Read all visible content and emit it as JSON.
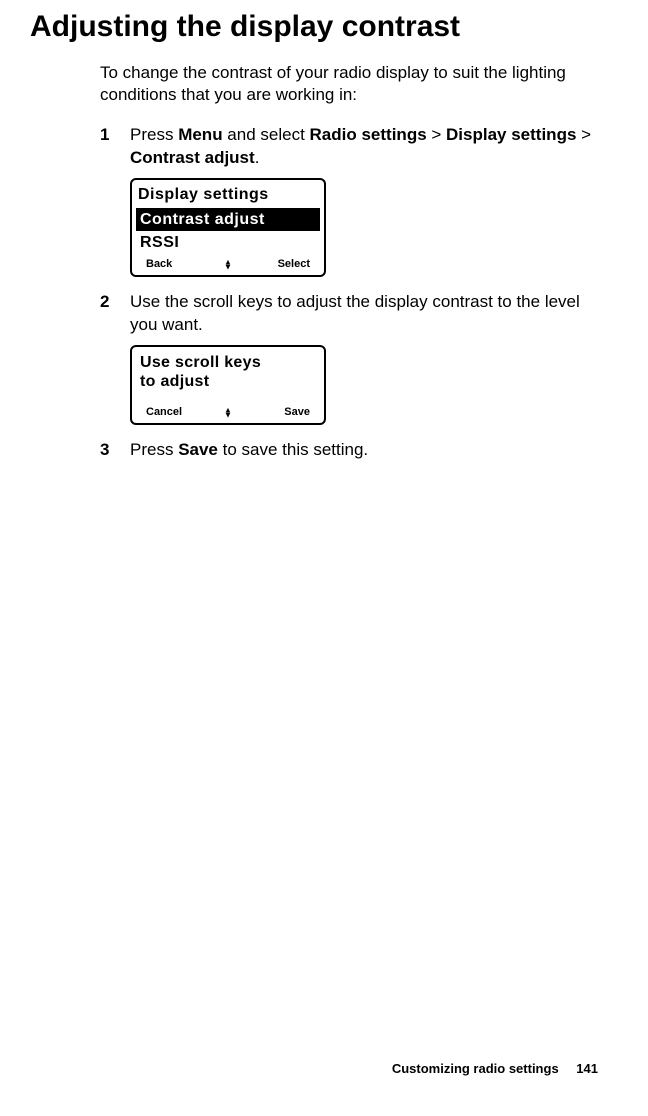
{
  "title": "Adjusting the display contrast",
  "intro": "To change the contrast of your radio display to suit the lighting conditions that you are working in:",
  "steps": {
    "s1_a": "Press ",
    "s1_b": "Menu",
    "s1_c": " and select ",
    "s1_d": "Radio settings",
    "s1_e": " > ",
    "s1_f": "Display settings",
    "s1_g": " > ",
    "s1_h": "Contrast adjust",
    "s1_i": ".",
    "s2": "Use the scroll keys to adjust the display contrast to the level you want.",
    "s3_a": "Press ",
    "s3_b": "Save",
    "s3_c": " to save this setting."
  },
  "lcd1": {
    "header": "Display settings",
    "row_selected": " Contrast adjust",
    "row2": " RSSI",
    "soft_left": "Back",
    "soft_right": "Select"
  },
  "lcd2": {
    "msg_line1": "Use scroll keys",
    "msg_line2": "to adjust",
    "soft_left": "Cancel",
    "soft_right": "Save"
  },
  "footer": {
    "section": "Customizing radio settings",
    "page": "141"
  }
}
